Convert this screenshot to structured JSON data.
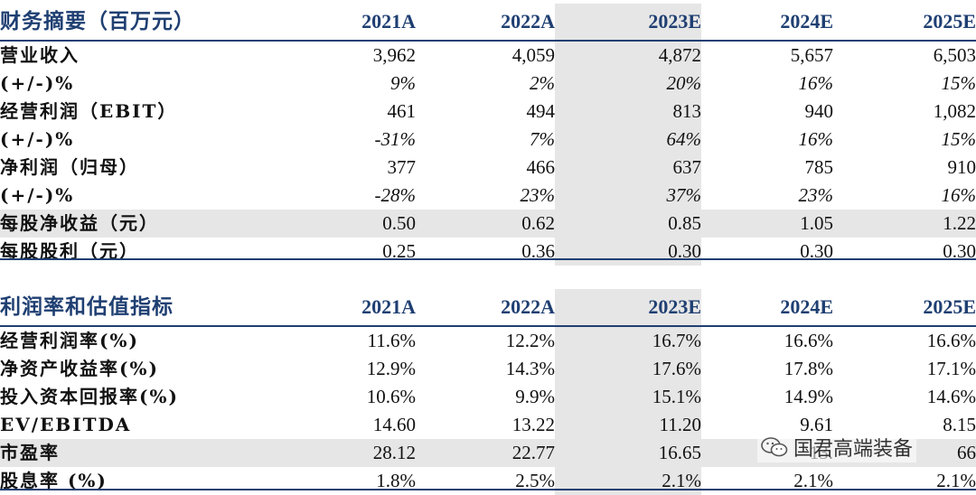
{
  "table1": {
    "title": "财务摘要（百万元）",
    "years": [
      "2021A",
      "2022A",
      "2023E",
      "2024E",
      "2025E"
    ],
    "rows": [
      {
        "label": "营业收入",
        "values": [
          "3,962",
          "4,059",
          "4,872",
          "5,657",
          "6,503"
        ],
        "pct": false,
        "shaded": false
      },
      {
        "label": "(+/-)%",
        "values": [
          "9%",
          "2%",
          "20%",
          "16%",
          "15%"
        ],
        "pct": true,
        "shaded": false
      },
      {
        "label": "经营利润（EBIT）",
        "values": [
          "461",
          "494",
          "813",
          "940",
          "1,082"
        ],
        "pct": false,
        "shaded": false
      },
      {
        "label": "(+/-)%",
        "values": [
          "-31%",
          "7%",
          "64%",
          "16%",
          "15%"
        ],
        "pct": true,
        "shaded": false
      },
      {
        "label": "净利润（归母）",
        "values": [
          "377",
          "466",
          "637",
          "785",
          "910"
        ],
        "pct": false,
        "shaded": false
      },
      {
        "label": "(+/-)%",
        "values": [
          "-28%",
          "23%",
          "37%",
          "23%",
          "16%"
        ],
        "pct": true,
        "shaded": false
      },
      {
        "label": "每股净收益（元）",
        "values": [
          "0.50",
          "0.62",
          "0.85",
          "1.05",
          "1.22"
        ],
        "pct": false,
        "shaded": true
      },
      {
        "label": "每股股利（元）",
        "values": [
          "0.25",
          "0.36",
          "0.30",
          "0.30",
          "0.30"
        ],
        "pct": false,
        "shaded": false
      }
    ]
  },
  "table2": {
    "title": "利润率和估值指标",
    "years": [
      "2021A",
      "2022A",
      "2023E",
      "2024E",
      "2025E"
    ],
    "rows": [
      {
        "label": "经营利润率(%)",
        "values": [
          "11.6%",
          "12.2%",
          "16.7%",
          "16.6%",
          "16.6%"
        ],
        "pct": false,
        "shaded": false
      },
      {
        "label": "净资产收益率(%)",
        "values": [
          "12.9%",
          "14.3%",
          "17.6%",
          "17.8%",
          "17.1%"
        ],
        "pct": false,
        "shaded": false
      },
      {
        "label": "投入资本回报率(%)",
        "values": [
          "10.6%",
          "9.9%",
          "15.1%",
          "14.9%",
          "14.6%"
        ],
        "pct": false,
        "shaded": false
      },
      {
        "label": "EV/EBITDA",
        "values": [
          "14.60",
          "13.22",
          "11.20",
          "9.61",
          "8.15"
        ],
        "pct": false,
        "shaded": false
      },
      {
        "label": "市盈率",
        "values": [
          "28.12",
          "22.77",
          "16.65",
          "13.",
          "66"
        ],
        "pct": false,
        "shaded": true
      },
      {
        "label": "股息率 (%)",
        "values": [
          "1.8%",
          "2.5%",
          "2.1%",
          "2.1%",
          "2.1%"
        ],
        "pct": false,
        "shaded": false
      }
    ]
  },
  "watermark": {
    "text": "国君高端装备",
    "icon": "wechat-icon"
  }
}
